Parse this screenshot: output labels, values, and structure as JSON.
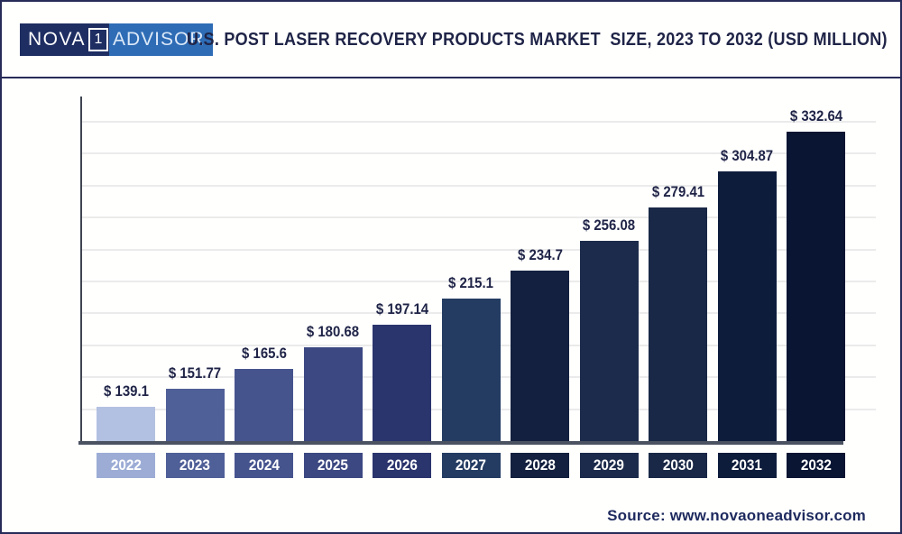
{
  "header": {
    "logo": {
      "nova": "NOVA",
      "one": "1",
      "advisor": "ADVISOR"
    },
    "title": "U.S. POST LASER RECOVERY PRODUCTS MARKET  SIZE, 2023 TO 2032 (USD MILLION)"
  },
  "chart_data": {
    "type": "bar",
    "title": "U.S. POST LASER RECOVERY PRODUCTS MARKET  SIZE, 2023 TO 2032 (USD MILLION)",
    "unit": "USD Million",
    "categories": [
      "2022",
      "2023",
      "2024",
      "2025",
      "2026",
      "2027",
      "2028",
      "2029",
      "2030",
      "2031",
      "2032"
    ],
    "values": [
      139.1,
      151.77,
      165.6,
      180.68,
      197.14,
      215.1,
      234.7,
      256.08,
      279.41,
      304.87,
      332.64
    ],
    "value_prefix": "$ ",
    "value_labels": [
      "$ 139.1",
      "$ 151.77",
      "$ 165.6",
      "$ 180.68",
      "$ 197.14",
      "$ 215.1",
      "$ 234.7",
      "$ 256.08",
      "$ 279.41",
      "$ 304.87",
      "$ 332.64"
    ],
    "xlabel": "",
    "ylabel": "",
    "y_axis_tick_labels_visible": false,
    "grid": "horizontal",
    "legend": "none",
    "bar_colors": [
      "#b2c0e1",
      "#4f5f97",
      "#46548e",
      "#3c4881",
      "#2a346d",
      "#243c62",
      "#13203f",
      "#1c2b4b",
      "#192846",
      "#0e1c3c",
      "#091533"
    ],
    "label_box_colors": [
      "#9cacd5",
      "#4f5f97",
      "#46548e",
      "#3c4881",
      "#2a346d",
      "#243c62",
      "#13203f",
      "#1c2b4b",
      "#192846",
      "#0e1c3c",
      "#091533"
    ]
  },
  "footer": {
    "source": "Source: www.novaoneadvisor.com"
  },
  "colors": {
    "accent_navy": "#1f2447",
    "border": "#272b58",
    "axis_line": "#3f4551",
    "baseline": "#4b5261",
    "gridline": "#ebebeb",
    "logo_left_bg": "#1e2e62",
    "logo_right_bg": "#2e6cb5",
    "source_text": "#1e2a5e"
  }
}
